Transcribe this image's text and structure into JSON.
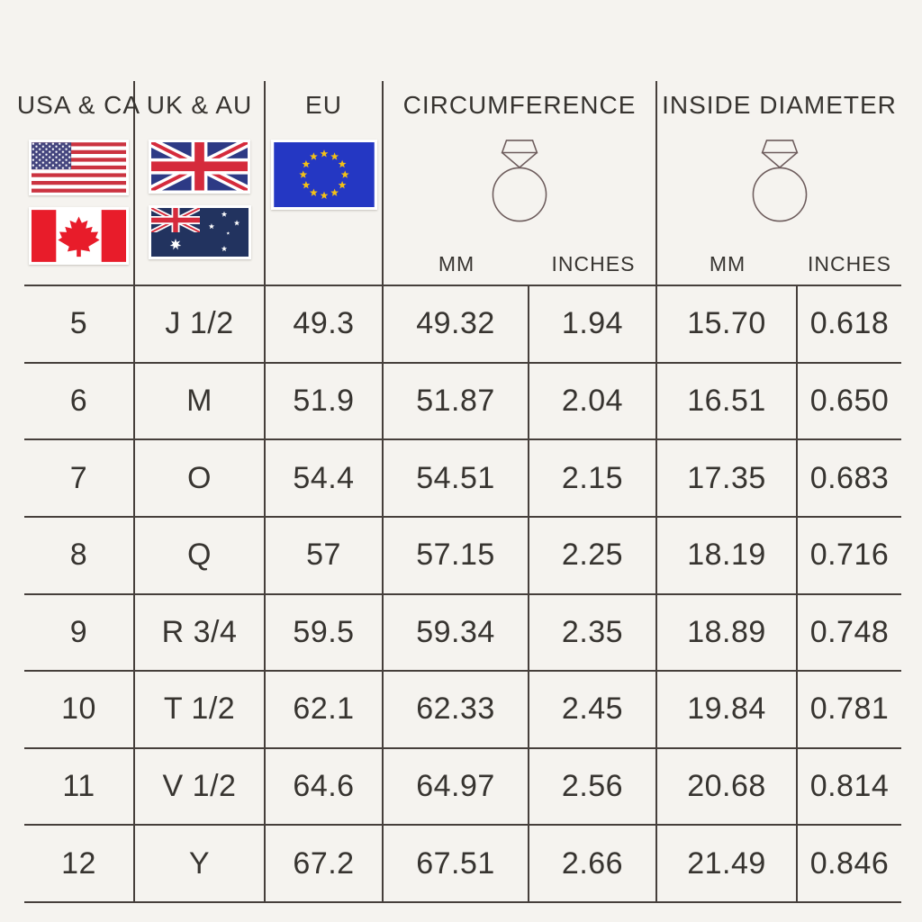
{
  "colors": {
    "bg": "#f5f3ef",
    "line": "#463f3b",
    "text": "#373430",
    "us_red": "#cb3340",
    "us_blue": "#44457e",
    "canada_red": "#e81c2a",
    "uk_blue": "#2d3a85",
    "uk_red": "#d52b3c",
    "au_blue": "#22335f",
    "eu_blue": "#2437c3",
    "eu_gold": "#f3c116",
    "ring_stroke": "#6d5c5c"
  },
  "header": {
    "col1": {
      "label": "USA & CA"
    },
    "col2": {
      "label": "UK & AU"
    },
    "col3": {
      "label": "EU"
    },
    "col4": {
      "label": "CIRCUMFERENCE",
      "unit_mm": "MM",
      "unit_inches": "INCHES"
    },
    "col5": {
      "label": "INSIDE DIAMETER",
      "unit_mm": "MM",
      "unit_inches": "INCHES"
    }
  },
  "icons": {
    "circumference": "diamond-ring-icon",
    "inside_diameter": "diamond-ring-icon",
    "flags": [
      "usa-flag",
      "canada-flag",
      "uk-flag",
      "australia-flag",
      "eu-flag"
    ]
  },
  "chart_data": {
    "type": "table",
    "title": "Ring size conversion chart",
    "columns": [
      "USA & CA",
      "UK & AU",
      "EU",
      "Circumference MM",
      "Circumference INCHES",
      "Inside Diameter MM",
      "Inside Diameter INCHES"
    ],
    "rows": [
      [
        "5",
        "J 1/2",
        "49.3",
        "49.32",
        "1.94",
        "15.70",
        "0.618"
      ],
      [
        "6",
        "M",
        "51.9",
        "51.87",
        "2.04",
        "16.51",
        "0.650"
      ],
      [
        "7",
        "O",
        "54.4",
        "54.51",
        "2.15",
        "17.35",
        "0.683"
      ],
      [
        "8",
        "Q",
        "57",
        "57.15",
        "2.25",
        "18.19",
        "0.716"
      ],
      [
        "9",
        "R 3/4",
        "59.5",
        "59.34",
        "2.35",
        "18.89",
        "0.748"
      ],
      [
        "10",
        "T 1/2",
        "62.1",
        "62.33",
        "2.45",
        "19.84",
        "0.781"
      ],
      [
        "11",
        "V 1/2",
        "64.6",
        "64.97",
        "2.56",
        "20.68",
        "0.814"
      ],
      [
        "12",
        "Y",
        "67.2",
        "67.51",
        "2.66",
        "21.49",
        "0.846"
      ]
    ]
  }
}
